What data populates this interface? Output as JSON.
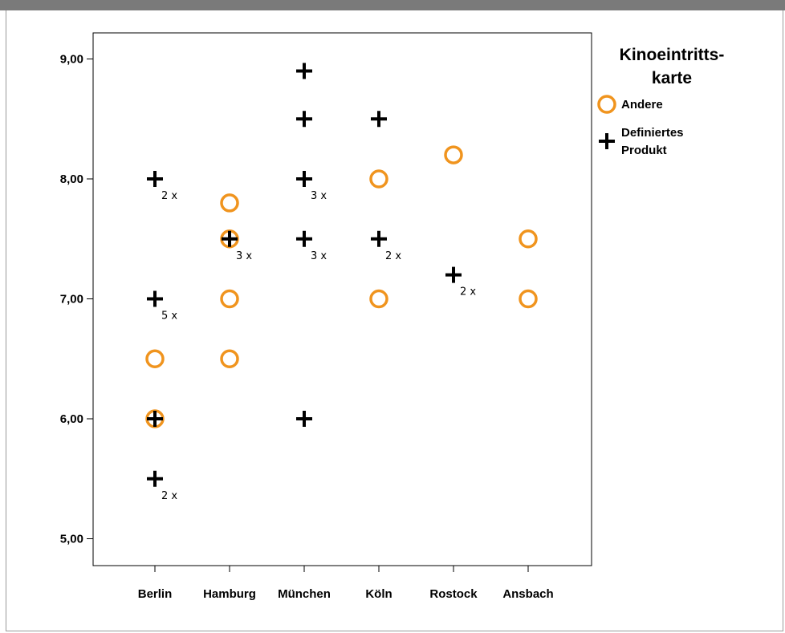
{
  "chart_data": {
    "type": "scatter",
    "title": "",
    "xlabel": "",
    "ylabel": "",
    "categories": [
      "Berlin",
      "Hamburg",
      "München",
      "Köln",
      "Rostock",
      "Ansbach"
    ],
    "ylim": [
      4.8,
      9.25
    ],
    "yticks": [
      {
        "value": 5,
        "label": "5,00"
      },
      {
        "value": 6,
        "label": "6,00"
      },
      {
        "value": 7,
        "label": "7,00"
      },
      {
        "value": 8,
        "label": "8,00"
      },
      {
        "value": 9,
        "label": "9,00"
      }
    ],
    "grid": false,
    "legend": {
      "title_lines": [
        "Kinoeintritts-",
        "karte"
      ],
      "placement": "right",
      "entries": [
        {
          "series": "Andere",
          "lines": [
            "Andere"
          ]
        },
        {
          "series": "Definiertes Produkt",
          "lines": [
            "Definiertes",
            "Produkt"
          ]
        }
      ]
    },
    "series": [
      {
        "name": "Andere",
        "marker": "circle",
        "color": "#f0941e",
        "points": [
          {
            "category": "Berlin",
            "y": 6.5,
            "count": 1
          },
          {
            "category": "Berlin",
            "y": 6.0,
            "count": 1
          },
          {
            "category": "Hamburg",
            "y": 7.8,
            "count": 1
          },
          {
            "category": "Hamburg",
            "y": 7.5,
            "count": 1
          },
          {
            "category": "Hamburg",
            "y": 7.0,
            "count": 1
          },
          {
            "category": "Hamburg",
            "y": 6.5,
            "count": 1
          },
          {
            "category": "Köln",
            "y": 8.0,
            "count": 1
          },
          {
            "category": "Köln",
            "y": 7.0,
            "count": 1
          },
          {
            "category": "Rostock",
            "y": 8.2,
            "count": 1
          },
          {
            "category": "Ansbach",
            "y": 7.5,
            "count": 1
          },
          {
            "category": "Ansbach",
            "y": 7.0,
            "count": 1
          }
        ]
      },
      {
        "name": "Definiertes Produkt",
        "marker": "plus",
        "color": "#000000",
        "points": [
          {
            "category": "Berlin",
            "y": 8.0,
            "count": 2,
            "count_label": "2 x"
          },
          {
            "category": "Berlin",
            "y": 7.0,
            "count": 5,
            "count_label": "5 x"
          },
          {
            "category": "Berlin",
            "y": 6.0,
            "count": 1
          },
          {
            "category": "Berlin",
            "y": 5.5,
            "count": 2,
            "count_label": "2 x"
          },
          {
            "category": "Hamburg",
            "y": 7.5,
            "count": 3,
            "count_label": "3 x"
          },
          {
            "category": "München",
            "y": 8.9,
            "count": 1
          },
          {
            "category": "München",
            "y": 8.5,
            "count": 1
          },
          {
            "category": "München",
            "y": 8.0,
            "count": 3,
            "count_label": "3 x"
          },
          {
            "category": "München",
            "y": 7.5,
            "count": 3,
            "count_label": "3 x"
          },
          {
            "category": "München",
            "y": 6.0,
            "count": 1
          },
          {
            "category": "Köln",
            "y": 8.5,
            "count": 1
          },
          {
            "category": "Köln",
            "y": 7.5,
            "count": 2,
            "count_label": "2 x"
          },
          {
            "category": "Rostock",
            "y": 7.2,
            "count": 2,
            "count_label": "2 x"
          }
        ]
      }
    ]
  }
}
